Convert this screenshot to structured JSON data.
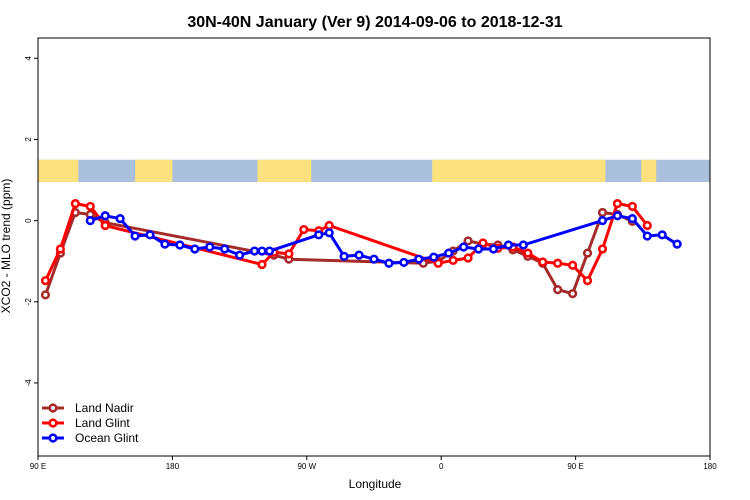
{
  "chart_data": {
    "type": "line",
    "title": "30N-40N January (Ver 9)   2014-09-06 to 2018-12-31",
    "xlabel": "Longitude",
    "ylabel": "XCO2 - MLO trend (ppm)",
    "xlim": [
      0,
      450
    ],
    "ylim": [
      -5.8,
      4.5
    ],
    "x_ticks": [
      {
        "value": 0,
        "label": "90 E"
      },
      {
        "value": 90,
        "label": "180"
      },
      {
        "value": 180,
        "label": "90 W"
      },
      {
        "value": 270,
        "label": "0"
      },
      {
        "value": 360,
        "label": "90 E"
      },
      {
        "value": 450,
        "label": "180"
      }
    ],
    "y_ticks": [
      {
        "value": -4,
        "label": "-4"
      },
      {
        "value": -2,
        "label": "-2"
      },
      {
        "value": 0,
        "label": "0"
      },
      {
        "value": 2,
        "label": "2"
      },
      {
        "value": 4,
        "label": "4"
      }
    ],
    "map_band": {
      "y_range": [
        0.95,
        1.5
      ],
      "land_color": "#fce17f",
      "ocean_color": "#a9bfdc"
    },
    "legend_position": "bottom-left",
    "series": [
      {
        "name": "Land Nadir",
        "color": "#a52a2a",
        "points": [
          [
            5,
            -1.83
          ],
          [
            15,
            -0.8
          ],
          [
            25,
            0.2
          ],
          [
            35,
            0.15
          ],
          [
            45,
            -0.05
          ],
          [
            158,
            -0.85
          ],
          [
            168,
            -0.95
          ],
          [
            258,
            -1.05
          ],
          [
            268,
            -1.0
          ],
          [
            278,
            -0.75
          ],
          [
            288,
            -0.5
          ],
          [
            298,
            -0.58
          ],
          [
            308,
            -0.6
          ],
          [
            318,
            -0.72
          ],
          [
            328,
            -0.88
          ],
          [
            338,
            -1.05
          ],
          [
            348,
            -1.7
          ],
          [
            358,
            -1.8
          ],
          [
            368,
            -0.8
          ],
          [
            378,
            0.2
          ],
          [
            388,
            0.15
          ],
          [
            398,
            -0.02
          ]
        ]
      },
      {
        "name": "Land Glint",
        "color": "#ff0000",
        "points": [
          [
            5,
            -1.48
          ],
          [
            15,
            -0.7
          ],
          [
            25,
            0.42
          ],
          [
            35,
            0.35
          ],
          [
            45,
            -0.12
          ],
          [
            150,
            -1.08
          ],
          [
            158,
            -0.78
          ],
          [
            168,
            -0.82
          ],
          [
            178,
            -0.22
          ],
          [
            188,
            -0.25
          ],
          [
            195,
            -0.12
          ],
          [
            268,
            -1.05
          ],
          [
            278,
            -0.98
          ],
          [
            288,
            -0.92
          ],
          [
            298,
            -0.55
          ],
          [
            308,
            -0.68
          ],
          [
            318,
            -0.65
          ],
          [
            328,
            -0.8
          ],
          [
            338,
            -1.02
          ],
          [
            348,
            -1.05
          ],
          [
            358,
            -1.1
          ],
          [
            368,
            -1.48
          ],
          [
            378,
            -0.7
          ],
          [
            388,
            0.42
          ],
          [
            398,
            0.35
          ],
          [
            408,
            -0.12
          ]
        ]
      },
      {
        "name": "Ocean Glint",
        "color": "#0000ff",
        "points": [
          [
            35,
            0.0
          ],
          [
            45,
            0.12
          ],
          [
            55,
            0.05
          ],
          [
            65,
            -0.38
          ],
          [
            75,
            -0.35
          ],
          [
            85,
            -0.58
          ],
          [
            95,
            -0.6
          ],
          [
            105,
            -0.7
          ],
          [
            115,
            -0.65
          ],
          [
            125,
            -0.7
          ],
          [
            135,
            -0.85
          ],
          [
            145,
            -0.75
          ],
          [
            150,
            -0.75
          ],
          [
            155,
            -0.75
          ],
          [
            188,
            -0.35
          ],
          [
            195,
            -0.3
          ],
          [
            205,
            -0.88
          ],
          [
            215,
            -0.85
          ],
          [
            225,
            -0.95
          ],
          [
            235,
            -1.05
          ],
          [
            245,
            -1.03
          ],
          [
            255,
            -0.95
          ],
          [
            265,
            -0.9
          ],
          [
            275,
            -0.8
          ],
          [
            285,
            -0.65
          ],
          [
            295,
            -0.7
          ],
          [
            305,
            -0.7
          ],
          [
            315,
            -0.6
          ],
          [
            325,
            -0.6
          ],
          [
            378,
            0.0
          ],
          [
            388,
            0.12
          ],
          [
            398,
            0.05
          ],
          [
            408,
            -0.38
          ],
          [
            418,
            -0.35
          ],
          [
            428,
            -0.58
          ]
        ]
      }
    ]
  }
}
